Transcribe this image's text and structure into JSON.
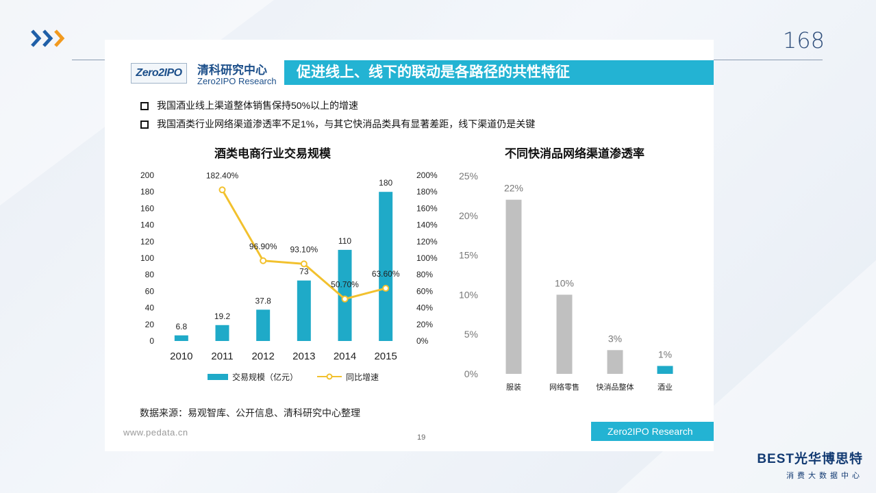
{
  "page": {
    "number": "168",
    "colors": {
      "accent": "#23b3d3",
      "chevron_blue": "#1f5fa8",
      "chevron_orange": "#f29a1f",
      "navy": "#123a72"
    }
  },
  "slide": {
    "logo_text": "Zero2IPO",
    "org_cn": "清科研究中心",
    "org_en": "Zero2IPO Research",
    "title": "促进线上、线下的联动是各路径的共性特征",
    "bullets": [
      "我国酒业线上渠道整体销售保持50%以上的增速",
      "我国酒类行业网络渠道渗透率不足1%，与其它快消品类具有显著差距，线下渠道仍是关键"
    ],
    "source": "数据来源：易观智库、公开信息、清科研究中心整理",
    "website": "www.pedata.cn",
    "slide_number": "19",
    "footer_label": "Zero2IPO Research"
  },
  "brand": {
    "name": "BEST光华博思特",
    "sub": "消费大数据中心"
  },
  "chart_data": [
    {
      "type": "bar+line",
      "title": "酒类电商行业交易规模",
      "categories": [
        "2010",
        "2011",
        "2012",
        "2013",
        "2014",
        "2015"
      ],
      "series": [
        {
          "name": "交易规模（亿元）",
          "type": "bar",
          "axis": "left",
          "color": "#1faac8",
          "values": [
            6.8,
            19.2,
            37.8,
            73,
            110,
            180
          ],
          "labels": [
            "6.8",
            "19.2",
            "37.8",
            "73",
            "110",
            "180"
          ]
        },
        {
          "name": "同比增速",
          "type": "line",
          "axis": "right",
          "color": "#f2c12e",
          "values": [
            null,
            182.4,
            96.9,
            93.1,
            50.7,
            63.6
          ],
          "labels": [
            "",
            "182.40%",
            "96.90%",
            "93.10%",
            "50.70%",
            "63.60%"
          ]
        }
      ],
      "left_axis": {
        "ylim": [
          0,
          200
        ],
        "ticks": [
          "0",
          "20",
          "40",
          "60",
          "80",
          "100",
          "120",
          "140",
          "160",
          "180",
          "200"
        ]
      },
      "right_axis": {
        "ylim": [
          0,
          200
        ],
        "ticks": [
          "0%",
          "20%",
          "40%",
          "60%",
          "80%",
          "100%",
          "120%",
          "140%",
          "160%",
          "180%",
          "200%"
        ]
      },
      "legend_position": "bottom",
      "grid": false
    },
    {
      "type": "bar",
      "title": "不同快消品网络渠道渗透率",
      "categories": [
        "服装",
        "网络零售",
        "快消品整体",
        "酒业"
      ],
      "values": [
        22,
        10,
        3,
        1
      ],
      "labels": [
        "22%",
        "10%",
        "3%",
        "1%"
      ],
      "colors": [
        "#c0c0c0",
        "#c0c0c0",
        "#c0c0c0",
        "#1faac8"
      ],
      "ylim": [
        0,
        25
      ],
      "ticks": [
        "0%",
        "5%",
        "10%",
        "15%",
        "20%",
        "25%"
      ],
      "grid": false
    }
  ]
}
